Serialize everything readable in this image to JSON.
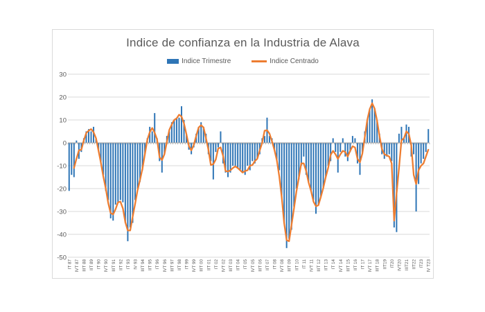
{
  "title": "Indice de confianza en la Industria de Alava",
  "legend": {
    "items": [
      {
        "label": "Indice Trimestre",
        "marker": "bar-swatch",
        "color": "#2e75b6"
      },
      {
        "label": "Indice Centrado",
        "marker": "line-swatch",
        "color": "#ed7d31"
      }
    ]
  },
  "colors": {
    "bar": "#2e75b6",
    "line": "#ed7d31",
    "text": "#595959",
    "grid": "#d9d9d9",
    "axis": "#a6a6a6",
    "tick": "#808080",
    "frame_border": "#d9d9d9",
    "background": "#ffffff"
  },
  "chart_data": {
    "type": "bar",
    "title": "Indice de confianza en la Industria de Alava",
    "xlabel": "",
    "ylabel": "",
    "ylim": [
      -50,
      30
    ],
    "grid": true,
    "legend_position": "top",
    "y_tick_values": [
      30,
      20,
      10,
      0,
      -10,
      -20,
      -30,
      -40,
      -50
    ],
    "y_tick_labels": [
      "30",
      "20",
      "10",
      "0",
      "-10",
      "-20",
      "-30",
      "-40",
      "-50"
    ],
    "x_start_quarter": "1987Q1",
    "x_end_quarter": "2023Q4",
    "x_label_stride": 3,
    "x_tick_labels": [
      "IT 87",
      "IVT 87",
      "IIIT 88",
      "IIT 89",
      "IT 90",
      "IVT 90",
      "IIIT 91",
      "IIT 92",
      "IT 93",
      "IV 93",
      "IIIT 94",
      "IIT 95",
      "IT 96",
      "IVT 96",
      "IIIT 97",
      "IIT 98",
      "IT 99",
      "IVT 99",
      "IIIT 00",
      "IIT 01",
      "IT 02",
      "IVT 02",
      "IIIT 03",
      "IIT 04",
      "IT 05",
      "IVT 05",
      "IIIT 06",
      "IIT 07",
      "IT 08",
      "IVT 08",
      "IIIT 09",
      "IIT 10",
      "IT 11",
      "IVT 11",
      "IIIT 12",
      "IIT 13",
      "IT 14",
      "IVT 14",
      "IIIT 15",
      "IIT 16",
      "IT 17",
      "IVT 17",
      "IIIT 18",
      "IIT19",
      "IT20",
      "IVT20",
      "IIIT21",
      "IIT22",
      "IT23",
      "IV T23"
    ],
    "series": [
      {
        "name": "Indice Trimestre",
        "type": "bar",
        "color": "#2e75b6",
        "values": [
          -21,
          -14,
          -15,
          1,
          -7,
          -4,
          2,
          5,
          6,
          5,
          7,
          2,
          -3,
          -9,
          -14,
          -21,
          -25,
          -33,
          -34,
          -27,
          -26,
          -25,
          -26,
          -35,
          -43,
          -37,
          -35,
          -25,
          -20,
          -17,
          -12,
          -5,
          2,
          7,
          5,
          13,
          2,
          -8,
          -13,
          -5,
          3,
          5,
          9,
          10,
          11,
          11,
          16,
          10,
          4,
          -3,
          -5,
          -2,
          4,
          7,
          9,
          7,
          4,
          -5,
          -8,
          -16,
          -4,
          -2,
          5,
          -9,
          -13,
          -15,
          -13,
          -10,
          -10,
          -11,
          -12,
          -13,
          -14,
          -10,
          -12,
          -8,
          -9,
          -7,
          -5,
          2,
          3,
          11,
          3,
          2,
          -3,
          -8,
          -12,
          -24,
          -35,
          -46,
          -42,
          -38,
          -28,
          -20,
          -16,
          -10,
          -6,
          -14,
          -17,
          -21,
          -25,
          -31,
          -27,
          -24,
          -20,
          -15,
          -10,
          -8,
          2,
          -4,
          -13,
          -4,
          2,
          -6,
          -8,
          -4,
          3,
          2,
          -9,
          -14,
          -5,
          5,
          10,
          15,
          19,
          15,
          10,
          4,
          -5,
          -7,
          -6,
          -5,
          -8,
          -37,
          -39,
          4,
          7,
          2,
          8,
          7,
          -6,
          -5,
          -30,
          -18,
          -9,
          -7,
          -4,
          6
        ]
      },
      {
        "name": "Indice Centrado",
        "type": "line",
        "color": "#ed7d31",
        "values": [
          null,
          null,
          -11,
          -7,
          -3.3,
          -3,
          1,
          4.3,
          5.3,
          6,
          4.7,
          2,
          -3.3,
          -8.7,
          -14.7,
          -20,
          -26.3,
          -30.7,
          -31.3,
          -29,
          -26,
          -25.7,
          -28.7,
          -34.7,
          -38.3,
          -38.3,
          -32.3,
          -26.7,
          -20.7,
          -16.3,
          -11.3,
          -5,
          1.3,
          4.7,
          6.5,
          4.5,
          1.5,
          -6.3,
          -7.5,
          -5,
          0.3,
          5.7,
          8,
          10,
          10.7,
          12.3,
          11.5,
          8.5,
          3.7,
          -1.3,
          -3.3,
          -1,
          3,
          6.7,
          7.7,
          6.7,
          2,
          -3,
          -9.7,
          -9.3,
          -7.3,
          -2.5,
          -2,
          -5.7,
          -12.3,
          -12.5,
          -12,
          -11,
          -10.3,
          -11,
          -12,
          -13,
          -12.3,
          -12,
          -10,
          -9.7,
          -8,
          -7,
          -3.3,
          0,
          5.3,
          5.5,
          4,
          0.7,
          -3,
          -7.7,
          -14.7,
          -23.7,
          -35,
          -42.5,
          -43,
          -36,
          -28.7,
          -21.3,
          -15.3,
          -9,
          -9,
          -12.3,
          -17.3,
          -21,
          -25.7,
          -27.7,
          -27.3,
          -23.7,
          -19.7,
          -15,
          -11,
          -5.3,
          -3.5,
          -5,
          -7,
          -5,
          -3.5,
          -4,
          -6,
          -3.5,
          -1.5,
          -2,
          -7,
          -8.5,
          -4.7,
          2.5,
          10,
          14.7,
          17.3,
          15,
          9.7,
          3,
          -2.7,
          -5,
          -5.5,
          -6,
          -9,
          -34,
          -22,
          -11,
          1,
          2,
          5,
          4,
          -1,
          -14,
          -18,
          -12,
          -10,
          -9,
          -6,
          -3
        ]
      }
    ]
  }
}
